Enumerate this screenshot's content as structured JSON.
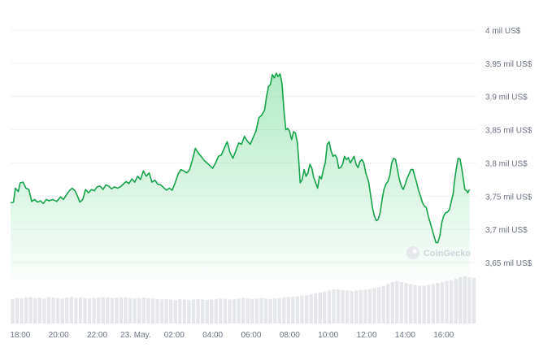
{
  "chart_data": {
    "type": "area",
    "title": "",
    "xlabel": "",
    "ylabel": "",
    "watermark": "CoinGecko",
    "line_color": "#16a34a",
    "volume_color": "#e5e7eb",
    "ylim": [
      3.62,
      4.01
    ],
    "xlim": [
      17.5,
      41.7
    ],
    "y_ticks": [
      {
        "value": 4.0,
        "label": "4 mil US$"
      },
      {
        "value": 3.95,
        "label": "3,95 mil US$"
      },
      {
        "value": 3.9,
        "label": "3,9 mil US$"
      },
      {
        "value": 3.85,
        "label": "3,85 mil US$"
      },
      {
        "value": 3.8,
        "label": "3,8 mil US$"
      },
      {
        "value": 3.75,
        "label": "3,75 mil US$"
      },
      {
        "value": 3.7,
        "label": "3,7 mil US$"
      },
      {
        "value": 3.65,
        "label": "3,65 mil US$"
      }
    ],
    "x_ticks": [
      {
        "value": 18,
        "label": "18:00"
      },
      {
        "value": 20,
        "label": "20:00"
      },
      {
        "value": 22,
        "label": "22:00"
      },
      {
        "value": 24,
        "label": "23. May."
      },
      {
        "value": 26,
        "label": "02:00"
      },
      {
        "value": 28,
        "label": "04:00"
      },
      {
        "value": 30,
        "label": "06:00"
      },
      {
        "value": 32,
        "label": "08:00"
      },
      {
        "value": 34,
        "label": "10:00"
      },
      {
        "value": 36,
        "label": "12:00"
      },
      {
        "value": 38,
        "label": "14:00"
      },
      {
        "value": 40,
        "label": "16:00"
      }
    ],
    "series": [
      {
        "values": [
          [
            17.5,
            3.74
          ],
          [
            17.65,
            3.741
          ],
          [
            17.75,
            3.762
          ],
          [
            17.9,
            3.757
          ],
          [
            18.0,
            3.77
          ],
          [
            18.15,
            3.771
          ],
          [
            18.3,
            3.762
          ],
          [
            18.45,
            3.76
          ],
          [
            18.6,
            3.742
          ],
          [
            18.75,
            3.745
          ],
          [
            18.9,
            3.741
          ],
          [
            19.05,
            3.743
          ],
          [
            19.2,
            3.739
          ],
          [
            19.35,
            3.745
          ],
          [
            19.5,
            3.743
          ],
          [
            19.7,
            3.745
          ],
          [
            19.9,
            3.742
          ],
          [
            20.1,
            3.749
          ],
          [
            20.25,
            3.745
          ],
          [
            20.4,
            3.752
          ],
          [
            20.55,
            3.758
          ],
          [
            20.7,
            3.762
          ],
          [
            20.85,
            3.758
          ],
          [
            20.95,
            3.752
          ],
          [
            21.1,
            3.741
          ],
          [
            21.25,
            3.745
          ],
          [
            21.4,
            3.76
          ],
          [
            21.55,
            3.755
          ],
          [
            21.7,
            3.76
          ],
          [
            21.85,
            3.758
          ],
          [
            22.0,
            3.764
          ],
          [
            22.15,
            3.765
          ],
          [
            22.3,
            3.76
          ],
          [
            22.45,
            3.767
          ],
          [
            22.6,
            3.765
          ],
          [
            22.75,
            3.761
          ],
          [
            22.9,
            3.764
          ],
          [
            23.05,
            3.762
          ],
          [
            23.2,
            3.764
          ],
          [
            23.35,
            3.768
          ],
          [
            23.5,
            3.772
          ],
          [
            23.65,
            3.769
          ],
          [
            23.8,
            3.776
          ],
          [
            23.95,
            3.771
          ],
          [
            24.1,
            3.78
          ],
          [
            24.25,
            3.775
          ],
          [
            24.4,
            3.788
          ],
          [
            24.55,
            3.78
          ],
          [
            24.7,
            3.785
          ],
          [
            24.85,
            3.771
          ],
          [
            25.0,
            3.774
          ],
          [
            25.15,
            3.768
          ],
          [
            25.3,
            3.767
          ],
          [
            25.45,
            3.763
          ],
          [
            25.6,
            3.759
          ],
          [
            25.75,
            3.762
          ],
          [
            25.9,
            3.759
          ],
          [
            26.05,
            3.77
          ],
          [
            26.2,
            3.783
          ],
          [
            26.35,
            3.79
          ],
          [
            26.5,
            3.788
          ],
          [
            26.65,
            3.785
          ],
          [
            26.8,
            3.79
          ],
          [
            26.95,
            3.805
          ],
          [
            27.1,
            3.822
          ],
          [
            27.25,
            3.815
          ],
          [
            27.4,
            3.81
          ],
          [
            27.55,
            3.804
          ],
          [
            27.7,
            3.8
          ],
          [
            27.85,
            3.796
          ],
          [
            28.0,
            3.792
          ],
          [
            28.15,
            3.8
          ],
          [
            28.3,
            3.81
          ],
          [
            28.45,
            3.812
          ],
          [
            28.6,
            3.822
          ],
          [
            28.75,
            3.832
          ],
          [
            28.9,
            3.816
          ],
          [
            29.05,
            3.807
          ],
          [
            29.2,
            3.818
          ],
          [
            29.35,
            3.83
          ],
          [
            29.5,
            3.828
          ],
          [
            29.65,
            3.84
          ],
          [
            29.8,
            3.833
          ],
          [
            29.95,
            3.828
          ],
          [
            30.1,
            3.838
          ],
          [
            30.25,
            3.848
          ],
          [
            30.4,
            3.868
          ],
          [
            30.55,
            3.872
          ],
          [
            30.7,
            3.88
          ],
          [
            30.8,
            3.9
          ],
          [
            30.9,
            3.915
          ],
          [
            31.0,
            3.918
          ],
          [
            31.1,
            3.933
          ],
          [
            31.2,
            3.928
          ],
          [
            31.3,
            3.935
          ],
          [
            31.4,
            3.93
          ],
          [
            31.5,
            3.934
          ],
          [
            31.6,
            3.92
          ],
          [
            31.7,
            3.88
          ],
          [
            31.8,
            3.85
          ],
          [
            31.9,
            3.852
          ],
          [
            32.0,
            3.847
          ],
          [
            32.1,
            3.835
          ],
          [
            32.2,
            3.847
          ],
          [
            32.3,
            3.845
          ],
          [
            32.4,
            3.83
          ],
          [
            32.45,
            3.812
          ],
          [
            32.55,
            3.77
          ],
          [
            32.65,
            3.775
          ],
          [
            32.75,
            3.79
          ],
          [
            32.85,
            3.78
          ],
          [
            32.95,
            3.785
          ],
          [
            33.05,
            3.798
          ],
          [
            33.15,
            3.792
          ],
          [
            33.25,
            3.778
          ],
          [
            33.35,
            3.77
          ],
          [
            33.45,
            3.762
          ],
          [
            33.55,
            3.78
          ],
          [
            33.65,
            3.776
          ],
          [
            33.75,
            3.79
          ],
          [
            33.85,
            3.8
          ],
          [
            33.95,
            3.828
          ],
          [
            34.05,
            3.832
          ],
          [
            34.15,
            3.818
          ],
          [
            34.25,
            3.81
          ],
          [
            34.35,
            3.812
          ],
          [
            34.45,
            3.808
          ],
          [
            34.55,
            3.792
          ],
          [
            34.65,
            3.793
          ],
          [
            34.75,
            3.798
          ],
          [
            34.85,
            3.81
          ],
          [
            34.95,
            3.805
          ],
          [
            35.05,
            3.808
          ],
          [
            35.15,
            3.8
          ],
          [
            35.25,
            3.805
          ],
          [
            35.35,
            3.81
          ],
          [
            35.45,
            3.798
          ],
          [
            35.55,
            3.793
          ],
          [
            35.65,
            3.802
          ],
          [
            35.75,
            3.805
          ],
          [
            35.85,
            3.8
          ],
          [
            35.95,
            3.785
          ],
          [
            36.1,
            3.772
          ],
          [
            36.2,
            3.752
          ],
          [
            36.3,
            3.733
          ],
          [
            36.4,
            3.72
          ],
          [
            36.5,
            3.713
          ],
          [
            36.6,
            3.715
          ],
          [
            36.7,
            3.725
          ],
          [
            36.8,
            3.745
          ],
          [
            36.9,
            3.76
          ],
          [
            37.0,
            3.768
          ],
          [
            37.1,
            3.772
          ],
          [
            37.2,
            3.781
          ],
          [
            37.3,
            3.8
          ],
          [
            37.4,
            3.807
          ],
          [
            37.5,
            3.805
          ],
          [
            37.6,
            3.79
          ],
          [
            37.7,
            3.775
          ],
          [
            37.8,
            3.765
          ],
          [
            37.9,
            3.76
          ],
          [
            38.0,
            3.768
          ],
          [
            38.1,
            3.777
          ],
          [
            38.2,
            3.783
          ],
          [
            38.3,
            3.79
          ],
          [
            38.4,
            3.79
          ],
          [
            38.5,
            3.78
          ],
          [
            38.6,
            3.77
          ],
          [
            38.7,
            3.758
          ],
          [
            38.8,
            3.75
          ],
          [
            38.9,
            3.74
          ],
          [
            39.0,
            3.735
          ],
          [
            39.1,
            3.733
          ],
          [
            39.2,
            3.72
          ],
          [
            39.3,
            3.71
          ],
          [
            39.4,
            3.7
          ],
          [
            39.5,
            3.69
          ],
          [
            39.6,
            3.68
          ],
          [
            39.7,
            3.68
          ],
          [
            39.8,
            3.69
          ],
          [
            39.9,
            3.71
          ],
          [
            40.0,
            3.72
          ],
          [
            40.1,
            3.725
          ],
          [
            40.2,
            3.726
          ],
          [
            40.3,
            3.73
          ],
          [
            40.4,
            3.742
          ],
          [
            40.5,
            3.755
          ],
          [
            40.55,
            3.77
          ],
          [
            40.65,
            3.79
          ],
          [
            40.75,
            3.807
          ],
          [
            40.85,
            3.806
          ],
          [
            40.95,
            3.79
          ],
          [
            41.05,
            3.77
          ],
          [
            41.1,
            3.76
          ],
          [
            41.2,
            3.758
          ],
          [
            41.25,
            3.755
          ],
          [
            41.35,
            3.76
          ]
        ]
      }
    ],
    "volume": [
      0.52,
      0.54,
      0.53,
      0.55,
      0.56,
      0.54,
      0.55,
      0.53,
      0.56,
      0.55,
      0.54,
      0.53,
      0.55,
      0.56,
      0.54,
      0.55,
      0.54,
      0.53,
      0.54,
      0.55,
      0.56,
      0.55,
      0.54,
      0.55,
      0.56,
      0.55,
      0.54,
      0.53,
      0.54,
      0.55,
      0.54,
      0.53,
      0.52,
      0.51,
      0.52,
      0.51,
      0.5,
      0.52,
      0.51,
      0.5,
      0.51,
      0.52,
      0.51,
      0.5,
      0.51,
      0.52,
      0.53,
      0.52,
      0.51,
      0.52,
      0.53,
      0.54,
      0.53,
      0.52,
      0.53,
      0.54,
      0.53,
      0.52,
      0.53,
      0.54,
      0.55,
      0.56,
      0.57,
      0.58,
      0.59,
      0.6,
      0.62,
      0.64,
      0.66,
      0.68,
      0.7,
      0.72,
      0.72,
      0.71,
      0.7,
      0.69,
      0.7,
      0.71,
      0.72,
      0.73,
      0.75,
      0.77,
      0.8,
      0.84,
      0.88,
      0.9,
      0.88,
      0.86,
      0.84,
      0.82,
      0.8,
      0.8,
      0.82,
      0.84,
      0.86,
      0.88,
      0.9,
      0.92,
      0.95,
      0.98,
      1.0,
      0.98,
      0.97
    ]
  }
}
